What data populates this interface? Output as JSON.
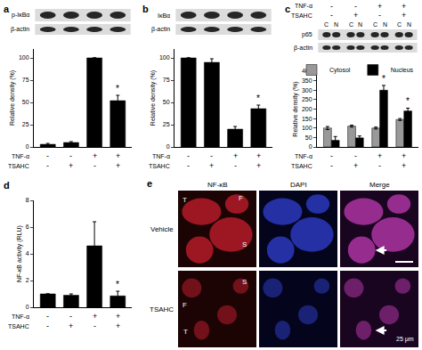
{
  "chart_data": [
    {
      "title": "a",
      "type": "bar",
      "blot_labels": [
        "p-IκBα",
        "β-actin"
      ],
      "categories": [
        null,
        null,
        null,
        null
      ],
      "values": [
        3,
        5,
        100,
        52
      ],
      "errors": [
        1,
        1,
        0,
        6
      ],
      "color": "#000000",
      "y_label": "Relative density (%)",
      "ylim": [
        0,
        110
      ],
      "yticks": [
        0,
        25,
        50,
        75,
        100
      ],
      "grid": false,
      "conditions": [
        {
          "name": "TNF-α",
          "signs": [
            "-",
            "-",
            "+",
            "+"
          ]
        },
        {
          "name": "TSAHC",
          "signs": [
            "-",
            "+",
            "-",
            "+"
          ]
        }
      ],
      "annotations": [
        {
          "category": 3,
          "text": "*"
        }
      ]
    },
    {
      "title": "b",
      "type": "bar",
      "blot_labels": [
        "IκBα",
        "β-actin"
      ],
      "categories": [
        null,
        null,
        null,
        null
      ],
      "values": [
        100,
        95,
        20,
        43
      ],
      "errors": [
        0,
        4,
        3,
        4
      ],
      "color": "#000000",
      "y_label": "Relative density (%)",
      "ylim": [
        0,
        110
      ],
      "yticks": [
        0,
        25,
        50,
        75,
        100
      ],
      "grid": false,
      "conditions": [
        {
          "name": "TNF-α",
          "signs": [
            "-",
            "-",
            "+",
            "+"
          ]
        },
        {
          "name": "TSAHC",
          "signs": [
            "-",
            "+",
            "-",
            "+"
          ]
        }
      ],
      "annotations": [
        {
          "category": 3,
          "text": "*"
        }
      ]
    },
    {
      "title": "c",
      "type": "bar",
      "blot_labels": [
        "p65",
        "β-actin"
      ],
      "header_conditions": [
        {
          "name": "TNF-α",
          "signs": [
            "-",
            "-",
            "+",
            "+"
          ]
        },
        {
          "name": "TSAHC",
          "signs": [
            "-",
            "+",
            "-",
            "+"
          ]
        }
      ],
      "lane_labels": [
        "C",
        "N",
        "C",
        "N",
        "C",
        "N",
        "C",
        "N"
      ],
      "categories": [
        null,
        null,
        null,
        null
      ],
      "series": [
        {
          "name": "Cytosol",
          "color": "#999999",
          "values": [
            100,
            110,
            100,
            145
          ],
          "errors": [
            8,
            5,
            5,
            5
          ]
        },
        {
          "name": "Nucleus",
          "color": "#000000",
          "values": [
            35,
            48,
            300,
            190
          ],
          "errors": [
            20,
            10,
            25,
            15
          ]
        }
      ],
      "y_label": "Relative density (%)",
      "ylim": [
        0,
        400
      ],
      "yticks": [
        0,
        50,
        100,
        150,
        200,
        250,
        300,
        350,
        400
      ],
      "grid": false,
      "legend": "upper right",
      "conditions": [
        {
          "name": "TNF-α",
          "signs": [
            "-",
            "-",
            "+",
            "+"
          ]
        },
        {
          "name": "TSAHC",
          "signs": [
            "-",
            "+",
            "-",
            "+"
          ]
        }
      ],
      "annotations": [
        {
          "category": 2,
          "series": "Nucleus",
          "text": "*"
        },
        {
          "category": 3,
          "series": "Nucleus",
          "text": "*"
        }
      ]
    },
    {
      "title": "d",
      "type": "bar",
      "categories": [
        null,
        null,
        null,
        null
      ],
      "values": [
        1,
        0.9,
        4.6,
        0.85
      ],
      "errors": [
        0,
        0.1,
        1.8,
        0.35
      ],
      "color": "#000000",
      "y_label": "NF-κB activity (RLU)",
      "ylim": [
        0,
        8
      ],
      "yticks": [
        0,
        2,
        4,
        6,
        8
      ],
      "grid": false,
      "conditions": [
        {
          "name": "TNF-α",
          "signs": [
            "-",
            "-",
            "+",
            "+"
          ]
        },
        {
          "name": "TSAHC",
          "signs": [
            "-",
            "+",
            "-",
            "+"
          ]
        }
      ],
      "annotations": [
        {
          "category": 3,
          "text": "*"
        }
      ]
    }
  ],
  "micrograph": {
    "title": "e",
    "columns": [
      "NF-κB",
      "DAPI",
      "Merge"
    ],
    "rows": [
      "Vehicle",
      "TSAHC"
    ],
    "labels": [
      [
        "T",
        "F",
        "S"
      ],
      [
        "S",
        "F",
        "T"
      ]
    ],
    "scale_bar": "25 μm"
  }
}
